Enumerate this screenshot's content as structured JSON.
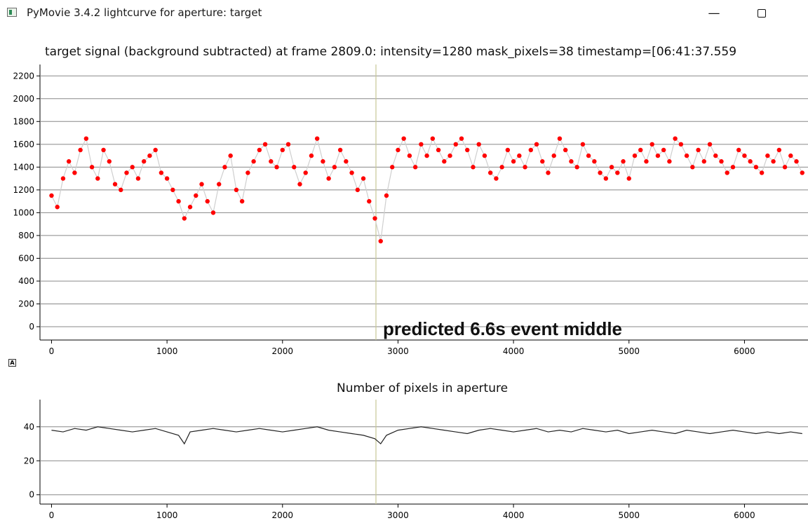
{
  "window": {
    "title": "PyMovie 3.4.2 lightcurve for aperture: target",
    "minimize_icon": "minimize-icon",
    "maximize_icon": "maximize-icon"
  },
  "autoscale_button": "A",
  "annotation": "predicted 6.6s event middle",
  "colors": {
    "signal_points": "#ff0000",
    "signal_line": "#cfcfcf",
    "pixel_line": "#222222",
    "event_marker": "#c8c896",
    "grid": "#888888"
  },
  "chart_data": [
    {
      "type": "scatter",
      "title": "target signal (background subtracted) at frame 2809.0: intensity=1280 mask_pixels=38 timestamp=[06:41:37.559",
      "xlabel": "",
      "ylabel": "",
      "xlim": [
        -100,
        6550
      ],
      "ylim": [
        -80,
        2300
      ],
      "xticks": [
        0,
        1000,
        2000,
        3000,
        4000,
        5000,
        6000
      ],
      "yticks": [
        0,
        200,
        400,
        600,
        800,
        1000,
        1200,
        1400,
        1600,
        1800,
        2000,
        2200
      ],
      "grid": true,
      "event_marker_x": 2809,
      "series": [
        {
          "x": [
            0,
            50,
            100,
            150,
            200,
            250,
            300,
            350,
            400,
            450,
            500,
            550,
            600,
            650,
            700,
            750,
            800,
            850,
            900,
            950,
            1000,
            1050,
            1100,
            1150,
            1200,
            1250,
            1300,
            1350,
            1400,
            1450,
            1500,
            1550,
            1600,
            1650,
            1700,
            1750,
            1800,
            1850,
            1900,
            1950,
            2000,
            2050,
            2100,
            2150,
            2200,
            2250,
            2300,
            2350,
            2400,
            2450,
            2500,
            2550,
            2600,
            2650,
            2700,
            2750,
            2800,
            2850,
            2900,
            2950,
            3000,
            3050,
            3100,
            3150,
            3200,
            3250,
            3300,
            3350,
            3400,
            3450,
            3500,
            3550,
            3600,
            3650,
            3700,
            3750,
            3800,
            3850,
            3900,
            3950,
            4000,
            4050,
            4100,
            4150,
            4200,
            4250,
            4300,
            4350,
            4400,
            4450,
            4500,
            4550,
            4600,
            4650,
            4700,
            4750,
            4800,
            4850,
            4900,
            4950,
            5000,
            5050,
            5100,
            5150,
            5200,
            5250,
            5300,
            5350,
            5400,
            5450,
            5500,
            5550,
            5600,
            5650,
            5700,
            5750,
            5800,
            5850,
            5900,
            5950,
            6000,
            6050,
            6100,
            6150,
            6200,
            6250,
            6300,
            6350,
            6400,
            6450,
            6500
          ],
          "y": [
            1150,
            1050,
            1300,
            1450,
            1350,
            1550,
            1650,
            1400,
            1300,
            1550,
            1450,
            1250,
            1200,
            1350,
            1400,
            1300,
            1450,
            1500,
            1550,
            1350,
            1300,
            1200,
            1100,
            950,
            1050,
            1150,
            1250,
            1100,
            1000,
            1250,
            1400,
            1500,
            1200,
            1100,
            1350,
            1450,
            1550,
            1600,
            1450,
            1400,
            1550,
            1600,
            1400,
            1250,
            1350,
            1500,
            1650,
            1450,
            1300,
            1400,
            1550,
            1450,
            1350,
            1200,
            1300,
            1100,
            950,
            750,
            1150,
            1400,
            1550,
            1650,
            1500,
            1400,
            1600,
            1500,
            1650,
            1550,
            1450,
            1500,
            1600,
            1650,
            1550,
            1400,
            1600,
            1500,
            1350,
            1300,
            1400,
            1550,
            1450,
            1500,
            1400,
            1550,
            1600,
            1450,
            1350,
            1500,
            1650,
            1550,
            1450,
            1400,
            1600,
            1500,
            1450,
            1350,
            1300,
            1400,
            1350,
            1450,
            1300,
            1500,
            1550,
            1450,
            1600,
            1500,
            1550,
            1450,
            1650,
            1600,
            1500,
            1400,
            1550,
            1450,
            1600,
            1500,
            1450,
            1350,
            1400,
            1550,
            1500,
            1450,
            1400,
            1350,
            1500,
            1450,
            1550,
            1400,
            1500,
            1450,
            1350
          ],
          "name": ""
        }
      ]
    },
    {
      "type": "line",
      "title": "Number of pixels in aperture",
      "xlabel": "",
      "ylabel": "",
      "xlim": [
        -100,
        6550
      ],
      "ylim": [
        -3,
        56
      ],
      "xticks": [
        0,
        1000,
        2000,
        3000,
        4000,
        5000,
        6000
      ],
      "yticks": [
        0,
        20,
        40
      ],
      "grid": true,
      "event_marker_x": 2809,
      "series": [
        {
          "x": [
            0,
            100,
            200,
            300,
            400,
            500,
            600,
            700,
            800,
            900,
            1000,
            1100,
            1150,
            1200,
            1300,
            1400,
            1500,
            1600,
            1700,
            1800,
            1900,
            2000,
            2100,
            2200,
            2300,
            2400,
            2500,
            2600,
            2700,
            2800,
            2850,
            2900,
            3000,
            3100,
            3200,
            3300,
            3400,
            3500,
            3600,
            3700,
            3800,
            3900,
            4000,
            4100,
            4200,
            4300,
            4400,
            4500,
            4600,
            4700,
            4800,
            4900,
            5000,
            5100,
            5200,
            5300,
            5400,
            5500,
            5600,
            5700,
            5800,
            5900,
            6000,
            6100,
            6200,
            6300,
            6400,
            6500
          ],
          "y": [
            38,
            37,
            39,
            38,
            40,
            39,
            38,
            37,
            38,
            39,
            37,
            35,
            30,
            37,
            38,
            39,
            38,
            37,
            38,
            39,
            38,
            37,
            38,
            39,
            40,
            38,
            37,
            36,
            35,
            33,
            30,
            35,
            38,
            39,
            40,
            39,
            38,
            37,
            36,
            38,
            39,
            38,
            37,
            38,
            39,
            37,
            38,
            37,
            39,
            38,
            37,
            38,
            36,
            37,
            38,
            37,
            36,
            38,
            37,
            36,
            37,
            38,
            37,
            36,
            37,
            36,
            37,
            36
          ],
          "name": ""
        }
      ]
    }
  ]
}
